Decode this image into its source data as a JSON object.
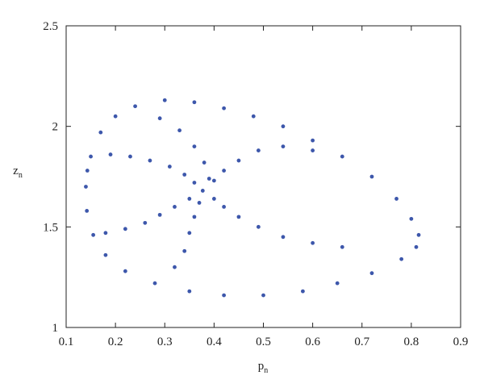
{
  "chart_data": {
    "type": "scatter",
    "xlabel": "p",
    "xlabel_sub": "n",
    "ylabel": "z",
    "ylabel_sub": "n",
    "xlim": [
      0.1,
      0.9
    ],
    "xticks": [
      0.1,
      0.2,
      0.3,
      0.4,
      0.5,
      0.6,
      0.7,
      0.8,
      0.9
    ],
    "ylim": [
      1,
      2.5
    ],
    "yticks": [
      1,
      1.5,
      2,
      2.5
    ],
    "grid": false,
    "series": [
      {
        "color": "#3d57ab",
        "x": [
          0.15,
          0.17,
          0.2,
          0.24,
          0.3,
          0.36,
          0.42,
          0.48,
          0.54,
          0.6,
          0.66,
          0.72,
          0.77,
          0.8,
          0.815,
          0.81,
          0.78,
          0.72,
          0.65,
          0.58,
          0.5,
          0.42,
          0.35,
          0.28,
          0.22,
          0.18,
          0.155,
          0.142,
          0.14,
          0.143,
          0.377,
          0.36,
          0.34,
          0.31,
          0.27,
          0.23,
          0.19,
          0.4,
          0.42,
          0.45,
          0.49,
          0.54,
          0.6,
          0.66,
          0.35,
          0.32,
          0.29,
          0.26,
          0.22,
          0.18,
          0.4,
          0.42,
          0.45,
          0.49,
          0.54,
          0.6,
          0.37,
          0.36,
          0.35,
          0.34,
          0.32,
          0.39,
          0.38,
          0.36,
          0.33,
          0.29
        ],
        "values": [
          1.85,
          1.97,
          2.05,
          2.1,
          2.13,
          2.12,
          2.09,
          2.05,
          2.0,
          1.93,
          1.85,
          1.75,
          1.64,
          1.54,
          1.46,
          1.4,
          1.34,
          1.27,
          1.22,
          1.18,
          1.16,
          1.16,
          1.18,
          1.22,
          1.28,
          1.36,
          1.46,
          1.58,
          1.7,
          1.78,
          1.68,
          1.72,
          1.76,
          1.8,
          1.83,
          1.85,
          1.86,
          1.64,
          1.6,
          1.55,
          1.5,
          1.45,
          1.42,
          1.4,
          1.64,
          1.6,
          1.56,
          1.52,
          1.49,
          1.47,
          1.73,
          1.78,
          1.83,
          1.88,
          1.9,
          1.88,
          1.62,
          1.55,
          1.47,
          1.38,
          1.3,
          1.74,
          1.82,
          1.9,
          1.98,
          2.04
        ]
      }
    ]
  }
}
